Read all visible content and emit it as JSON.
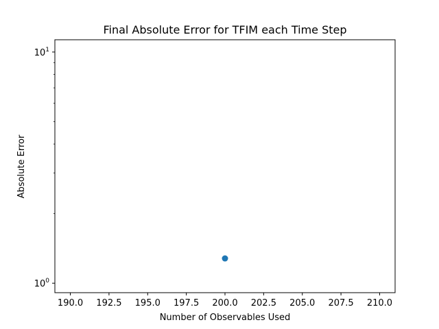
{
  "chart_data": {
    "type": "scatter",
    "title": "Final Absolute Error for TFIM each Time Step",
    "xlabel": "Number of Observables Used",
    "ylabel": "Absolute Error",
    "xlim": [
      189.0,
      211.0
    ],
    "ylim": [
      0.91,
      11.3
    ],
    "yscale": "log",
    "grid": false,
    "x_ticks": [
      {
        "value": 190.0,
        "label": "190.0"
      },
      {
        "value": 192.5,
        "label": "192.5"
      },
      {
        "value": 195.0,
        "label": "195.0"
      },
      {
        "value": 197.5,
        "label": "197.5"
      },
      {
        "value": 200.0,
        "label": "200.0"
      },
      {
        "value": 202.5,
        "label": "202.5"
      },
      {
        "value": 205.0,
        "label": "205.0"
      },
      {
        "value": 207.5,
        "label": "207.5"
      },
      {
        "value": 210.0,
        "label": "210.0"
      }
    ],
    "y_ticks": [
      {
        "value": 1,
        "base": "10",
        "exp": "0"
      },
      {
        "value": 10,
        "base": "10",
        "exp": "1"
      }
    ],
    "series": [
      {
        "color": "#1f77b4",
        "points": [
          {
            "x": 200.0,
            "y": 1.28
          }
        ]
      }
    ]
  }
}
